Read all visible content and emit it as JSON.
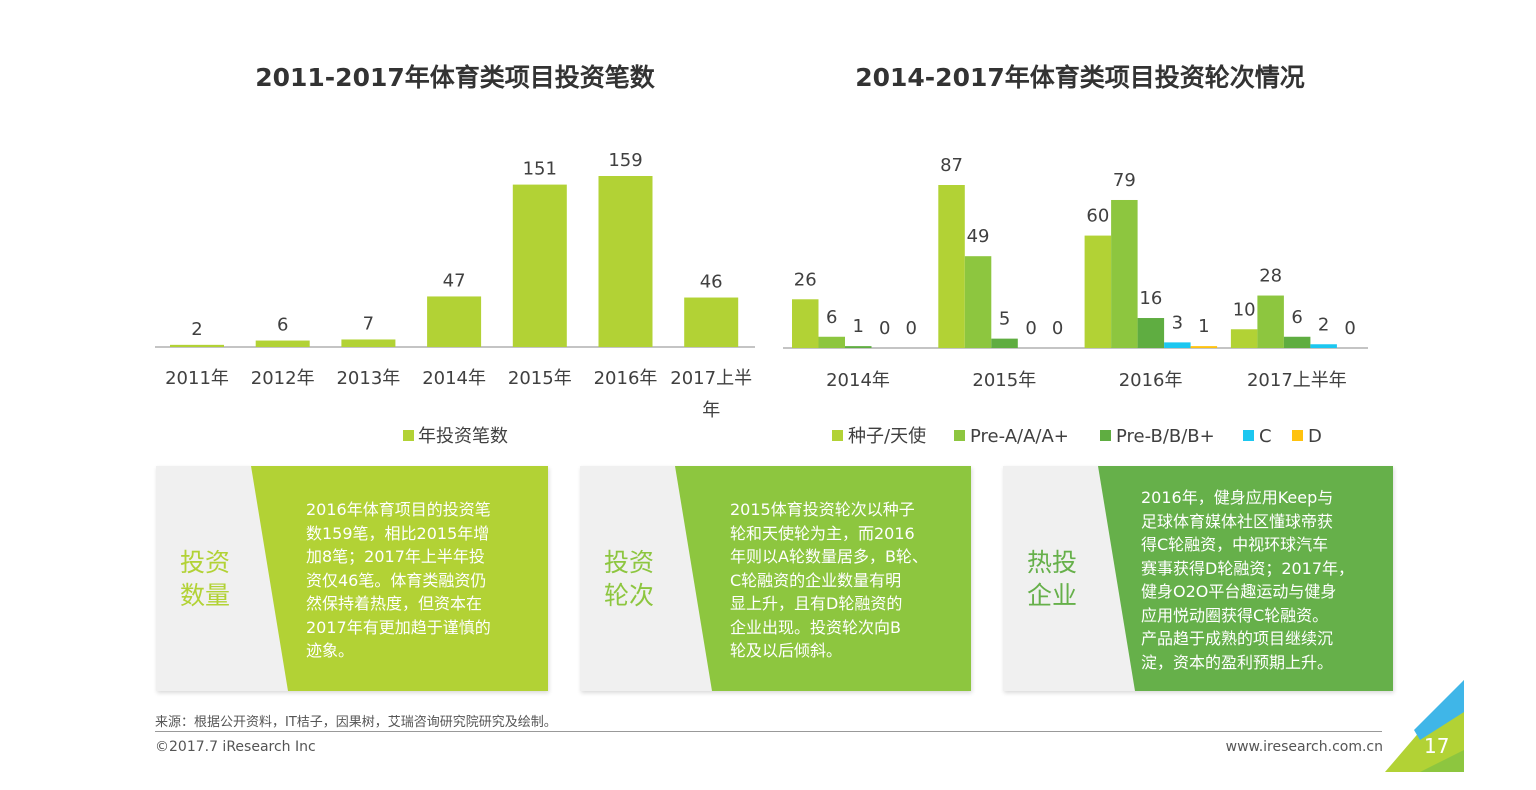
{
  "chart_data": [
    {
      "type": "bar",
      "title": "2011-2017年体育类项目投资笔数",
      "categories": [
        "2011年",
        "2012年",
        "2013年",
        "2014年",
        "2015年",
        "2016年",
        "2017上半年"
      ],
      "series": [
        {
          "name": "年投资笔数",
          "values": [
            2,
            6,
            7,
            47,
            151,
            159,
            46
          ],
          "color": "#b2d235"
        }
      ],
      "ylim": [
        0,
        159
      ],
      "grid": false,
      "legend": "bottom"
    },
    {
      "type": "bar",
      "title": "2014-2017年体育类项目投资轮次情况",
      "categories": [
        "2014年",
        "2015年",
        "2016年",
        "2017上半年"
      ],
      "series": [
        {
          "name": "种子/天使",
          "values": [
            26,
            87,
            60,
            10
          ],
          "color": "#b2d235"
        },
        {
          "name": "Pre-A/A/A+",
          "values": [
            6,
            49,
            79,
            28
          ],
          "color": "#8dc63f"
        },
        {
          "name": "Pre-B/B/B+",
          "values": [
            1,
            5,
            16,
            6
          ],
          "color": "#5fad41"
        },
        {
          "name": "C",
          "values": [
            0,
            0,
            3,
            2
          ],
          "color": "#1cc7f0"
        },
        {
          "name": "D",
          "values": [
            0,
            0,
            1,
            0
          ],
          "color": "#ffc20e"
        }
      ],
      "ylim": [
        0,
        87
      ],
      "grid": false,
      "legend": "bottom"
    }
  ],
  "cards": [
    {
      "label1": "投资",
      "label2": "数量",
      "color": "#b2d235",
      "lines": [
        "2016年体育项目的投资笔",
        "数159笔，相比2015年增",
        "加8笔；2017年上半年投",
        "资仅46笔。体育类融资仍",
        "然保持着热度，但资本在",
        "2017年有更加趋于谨慎的",
        "迹象。"
      ]
    },
    {
      "label1": "投资",
      "label2": "轮次",
      "color": "#8dc63f",
      "lines": [
        "2015体育投资轮次以种子",
        "轮和天使轮为主，而2016",
        "年则以A轮数量居多，B轮、",
        "C轮融资的企业数量有明",
        "显上升，且有D轮融资的",
        "企业出现。投资轮次向B",
        "轮及以后倾斜。"
      ]
    },
    {
      "label1": "热投",
      "label2": "企业",
      "color": "#66b04a",
      "lines": [
        "2016年，健身应用Keep与",
        "足球体育媒体社区懂球帝获",
        "得C轮融资，中视环球汽车",
        "赛事获得D轮融资；2017年，",
        "健身O2O平台趣运动与健身",
        "应用悦动圈获得C轮融资。",
        "产品趋于成熟的项目继续沉",
        "淀，资本的盈利预期上升。"
      ]
    }
  ],
  "footer": {
    "source": "来源：根据公开资料，IT桔子，因果树，艾瑞咨询研究院研究及绘制。",
    "copyright": "©2017.7 iResearch Inc",
    "url": "www.iresearch.com.cn",
    "page": "17"
  }
}
